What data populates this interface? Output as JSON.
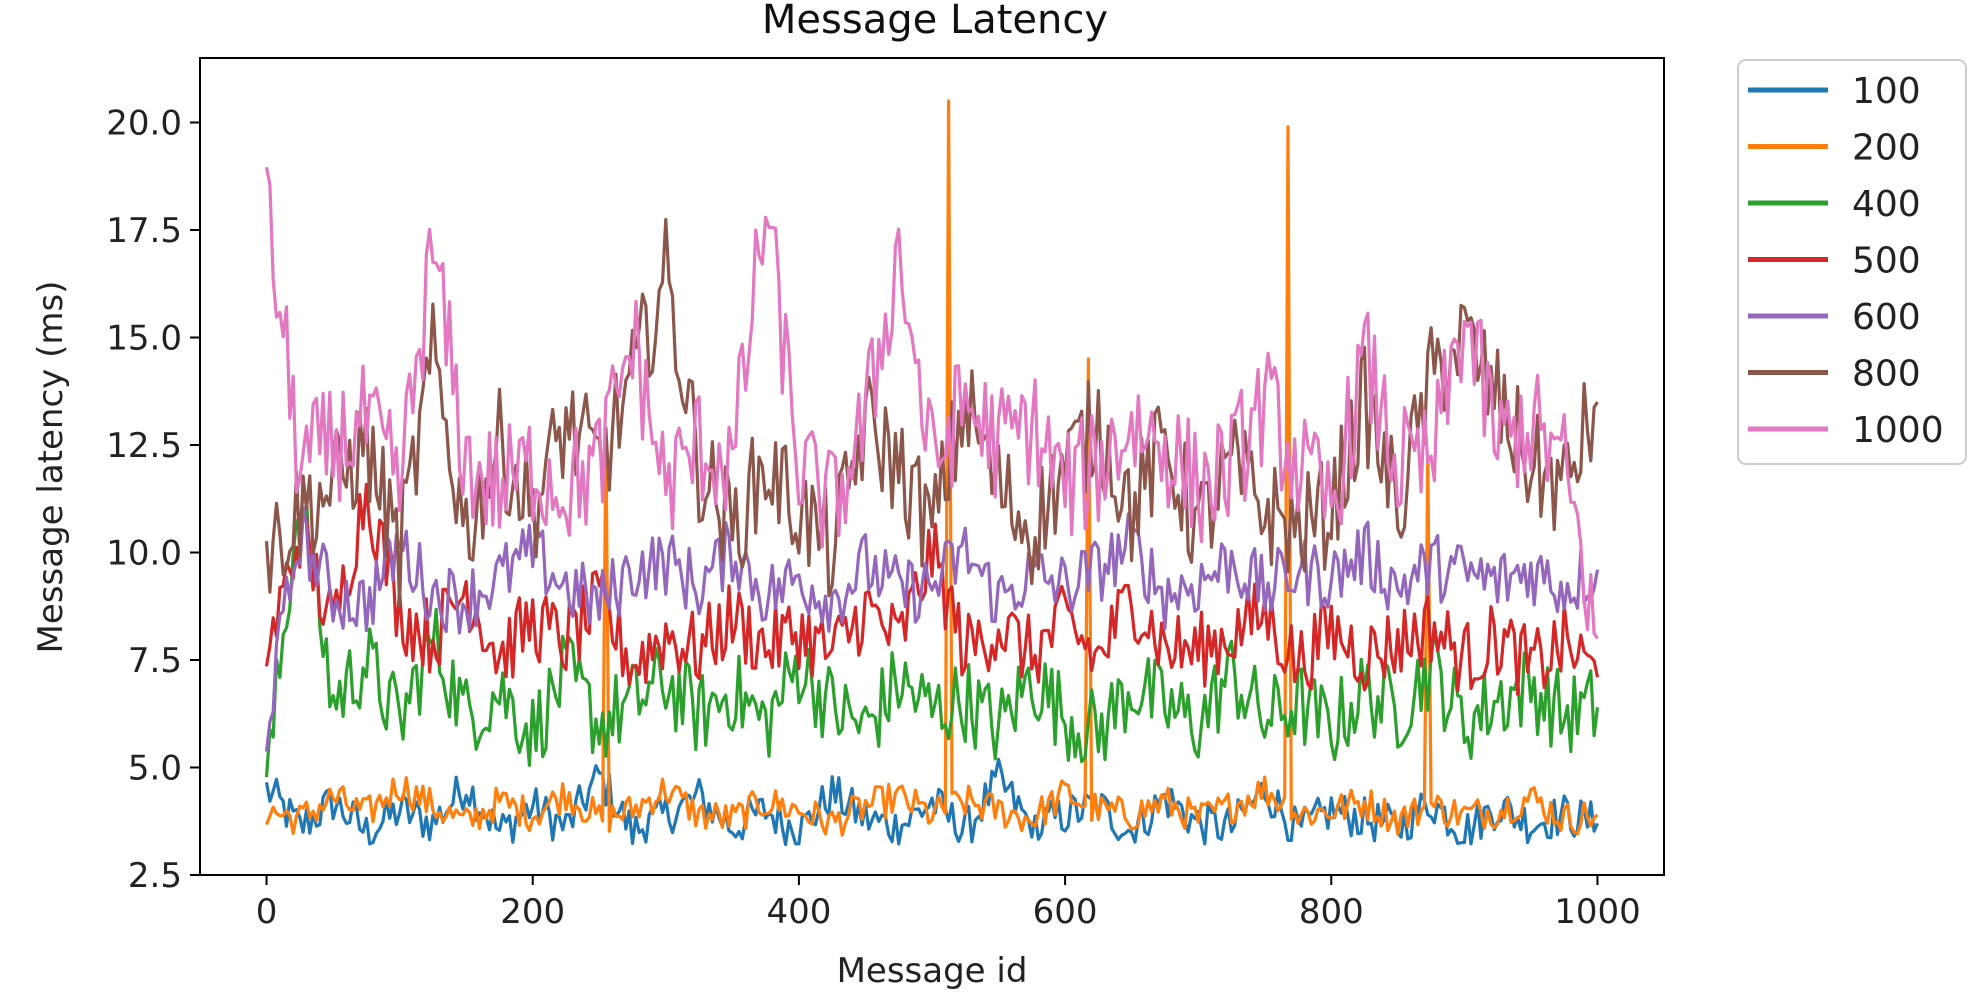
{
  "chart_data": {
    "type": "line",
    "title": "Message Latency",
    "xlabel": "Message id",
    "ylabel": "Message latency (ms)",
    "xlim": [
      -50,
      1050
    ],
    "ylim": [
      2.5,
      21.5
    ],
    "xticks": [
      0,
      200,
      400,
      600,
      800,
      1000
    ],
    "xtick_labels": [
      "0",
      "200",
      "400",
      "600",
      "800",
      "1000"
    ],
    "yticks": [
      2.5,
      5.0,
      7.5,
      10.0,
      12.5,
      15.0,
      17.5,
      20.0
    ],
    "ytick_labels": [
      "2.5",
      "5.0",
      "7.5",
      "10.0",
      "12.5",
      "15.0",
      "17.5",
      "20.0"
    ],
    "grid": false,
    "legend_position": "outside-top-right",
    "x": [
      0,
      25,
      50,
      75,
      100,
      125,
      150,
      175,
      200,
      225,
      250,
      275,
      300,
      325,
      350,
      375,
      400,
      425,
      450,
      475,
      500,
      525,
      550,
      575,
      600,
      625,
      650,
      675,
      700,
      725,
      750,
      775,
      800,
      825,
      850,
      875,
      900,
      925,
      950,
      975,
      1000
    ],
    "series": [
      {
        "name": "100",
        "color": "#1f77b4",
        "values": [
          4.5,
          3.6,
          4.2,
          3.5,
          4.0,
          3.7,
          4.6,
          3.5,
          4.1,
          3.6,
          4.8,
          3.5,
          3.9,
          4.3,
          3.6,
          4.0,
          3.5,
          4.4,
          3.8,
          3.6,
          4.2,
          3.5,
          4.7,
          3.6,
          3.9,
          4.1,
          3.5,
          4.3,
          3.7,
          3.6,
          4.5,
          3.5,
          4.0,
          3.8,
          3.6,
          4.2,
          3.5,
          4.1,
          3.7,
          3.9,
          3.7
        ]
      },
      {
        "name": "200",
        "color": "#ff7f0e",
        "values": [
          4.0,
          3.8,
          4.3,
          3.9,
          4.6,
          4.1,
          3.7,
          4.2,
          3.9,
          4.4,
          3.8,
          4.0,
          4.5,
          3.9,
          3.8,
          4.2,
          4.0,
          3.7,
          4.1,
          4.3,
          3.9,
          4.2,
          4.0,
          3.8,
          4.4,
          4.0,
          3.9,
          4.2,
          3.8,
          4.1,
          4.5,
          3.9,
          4.0,
          4.2,
          3.8,
          4.1,
          3.9,
          4.0,
          4.3,
          3.8,
          3.9
        ],
        "spikes": [
          {
            "x": 512,
            "y": 20.5
          },
          {
            "x": 768,
            "y": 19.9
          },
          {
            "x": 618,
            "y": 14.5
          },
          {
            "x": 256,
            "y": 12.8
          },
          {
            "x": 872,
            "y": 12.2
          }
        ]
      },
      {
        "name": "400",
        "color": "#2ca02c",
        "values": [
          4.5,
          11.5,
          6.5,
          7.5,
          6.0,
          8.0,
          6.2,
          6.8,
          5.8,
          7.2,
          6.0,
          6.5,
          7.0,
          6.2,
          6.8,
          6.0,
          7.4,
          6.4,
          5.9,
          7.0,
          6.3,
          6.6,
          5.9,
          7.1,
          6.2,
          5.8,
          6.9,
          6.4,
          6.0,
          7.2,
          6.1,
          6.5,
          5.9,
          6.8,
          6.3,
          7.4,
          6.0,
          6.6,
          6.9,
          6.2,
          6.4
        ]
      },
      {
        "name": "500",
        "color": "#d62728",
        "values": [
          7.5,
          10.5,
          8.2,
          11.5,
          8.6,
          8.0,
          9.2,
          7.6,
          8.4,
          7.9,
          8.8,
          7.4,
          8.1,
          7.7,
          8.5,
          7.8,
          8.2,
          7.6,
          8.7,
          7.9,
          10.0,
          7.7,
          8.3,
          7.6,
          8.4,
          7.5,
          9.0,
          7.8,
          7.7,
          8.1,
          8.6,
          7.4,
          8.2,
          7.6,
          7.9,
          8.3,
          7.5,
          8.0,
          7.3,
          7.9,
          7.1
        ]
      },
      {
        "name": "600",
        "color": "#9467bd",
        "values": [
          6.0,
          10.5,
          9.0,
          8.8,
          10.2,
          9.0,
          8.9,
          9.4,
          10.0,
          9.2,
          8.8,
          9.6,
          9.8,
          9.2,
          10.1,
          9.0,
          9.4,
          8.9,
          9.7,
          9.1,
          9.2,
          10.0,
          8.9,
          9.5,
          9.2,
          9.6,
          10.2,
          9.0,
          9.3,
          9.8,
          9.1,
          9.6,
          9.4,
          10.0,
          9.2,
          9.7,
          9.5,
          9.3,
          9.6,
          9.2,
          9.6
        ]
      },
      {
        "name": "800",
        "color": "#8c564b",
        "values": [
          10.0,
          11.0,
          11.5,
          12.5,
          10.0,
          14.5,
          10.5,
          12.5,
          11.0,
          13.0,
          12.0,
          14.0,
          16.5,
          12.0,
          10.5,
          12.0,
          11.0,
          10.0,
          13.0,
          12.0,
          10.5,
          13.5,
          11.5,
          10.5,
          12.0,
          13.0,
          11.0,
          12.5,
          10.5,
          12.0,
          11.0,
          10.5,
          11.0,
          13.5,
          11.0,
          14.0,
          15.0,
          13.5,
          12.0,
          11.5,
          13.5
        ]
      },
      {
        "name": "1000",
        "color": "#e377c2",
        "values": [
          18.0,
          12.0,
          12.5,
          13.0,
          11.5,
          17.0,
          12.0,
          11.5,
          12.0,
          11.5,
          12.0,
          15.0,
          11.5,
          12.5,
          12.0,
          18.0,
          12.0,
          11.0,
          13.0,
          17.0,
          12.0,
          13.5,
          12.5,
          13.0,
          11.5,
          12.0,
          13.0,
          12.5,
          11.5,
          12.0,
          13.5,
          12.0,
          11.0,
          14.5,
          12.0,
          12.0,
          15.5,
          12.5,
          13.0,
          12.0,
          8.0
        ]
      }
    ]
  }
}
